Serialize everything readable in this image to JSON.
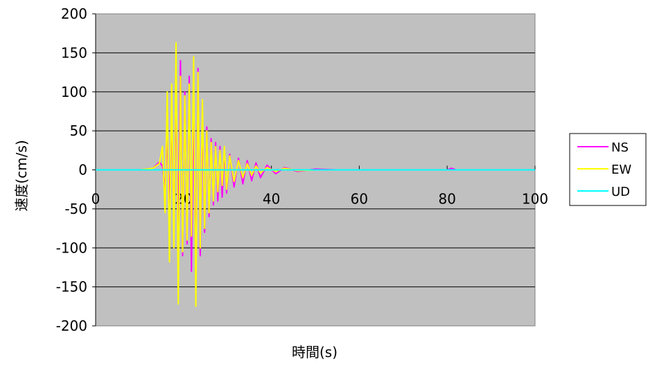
{
  "chart_data": {
    "type": "line",
    "title": "",
    "xlabel": "時間(s)",
    "ylabel": "速度(cm/s)",
    "xlim": [
      0,
      100
    ],
    "ylim": [
      -200,
      200
    ],
    "x_ticks": [
      "0",
      "20",
      "40",
      "60",
      "80",
      "100"
    ],
    "y_ticks": [
      "200",
      "150",
      "100",
      "50",
      "0",
      "-50",
      "-100",
      "-150",
      "-200"
    ],
    "grid": true,
    "legend_position": "right",
    "plot_background": "#c0c0c0",
    "series": [
      {
        "name": "NS",
        "color": "#ff00ff",
        "x": [
          0,
          5,
          10,
          13,
          14.5,
          15.2,
          15.8,
          16.3,
          16.8,
          17.3,
          17.8,
          18.3,
          18.8,
          19.3,
          19.8,
          20.3,
          20.8,
          21.3,
          21.8,
          22.3,
          22.8,
          23.3,
          23.8,
          24.3,
          24.8,
          25.3,
          25.8,
          26.3,
          26.8,
          27.3,
          27.8,
          28.3,
          28.8,
          29.3,
          29.8,
          30.5,
          31.5,
          32.5,
          33.5,
          34.5,
          35.5,
          36.5,
          37.5,
          39,
          41,
          43,
          46,
          50,
          55,
          60,
          70,
          80,
          81,
          82
        ],
        "y": [
          0,
          0,
          0,
          2,
          10,
          5,
          -25,
          40,
          -45,
          60,
          -70,
          90,
          -85,
          140,
          -110,
          100,
          -95,
          120,
          -130,
          85,
          -145,
          130,
          -110,
          70,
          -80,
          55,
          -60,
          40,
          -45,
          35,
          -40,
          30,
          -35,
          25,
          -30,
          20,
          -22,
          15,
          -18,
          12,
          -14,
          9,
          -10,
          6,
          -5,
          3,
          -2,
          1,
          0,
          0,
          0,
          0,
          2,
          0
        ]
      },
      {
        "name": "EW",
        "color": "#ffff00",
        "x": [
          0,
          5,
          10,
          13,
          14.5,
          15.2,
          15.8,
          16.3,
          16.8,
          17.3,
          17.8,
          18.3,
          18.8,
          19.3,
          19.8,
          20.3,
          20.8,
          21.3,
          21.8,
          22.3,
          22.8,
          23.3,
          23.8,
          24.3,
          24.8,
          25.3,
          25.8,
          26.3,
          26.8,
          27.3,
          27.8,
          28.3,
          28.8,
          29.3,
          29.8,
          30.5,
          31.5,
          32.5,
          33.5,
          34.5,
          35.5,
          36.5,
          37.5,
          39,
          41,
          43,
          46,
          50,
          55,
          60,
          70,
          80,
          82
        ],
        "y": [
          0,
          0,
          0,
          2,
          8,
          30,
          -55,
          100,
          -118,
          110,
          -100,
          163,
          -172,
          120,
          -105,
          95,
          -90,
          110,
          -85,
          145,
          -175,
          125,
          -100,
          90,
          -75,
          50,
          -55,
          35,
          -40,
          30,
          -28,
          25,
          -20,
          30,
          -25,
          18,
          -15,
          12,
          -10,
          8,
          -7,
          5,
          -4,
          3,
          -2,
          2,
          -1,
          0,
          0,
          0,
          0,
          0,
          0
        ]
      },
      {
        "name": "UD",
        "color": "#00ffff",
        "x": [
          0,
          100
        ],
        "y": [
          0,
          0
        ]
      }
    ]
  }
}
